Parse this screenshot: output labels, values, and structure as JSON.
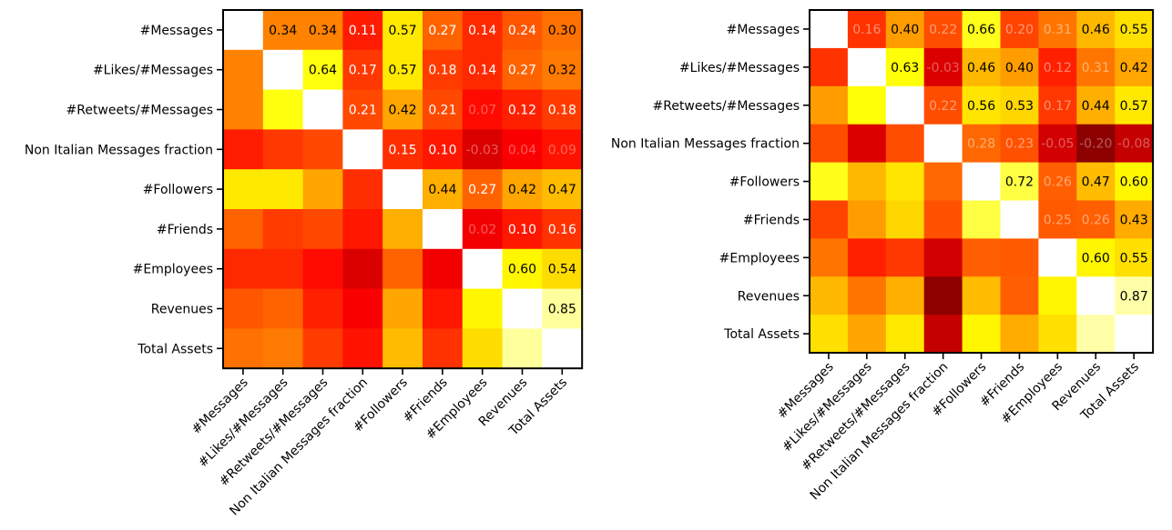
{
  "chart_data": [
    {
      "type": "heatmap",
      "title": "",
      "xlabel": "",
      "ylabel": "",
      "colormap": "hot",
      "value_range": [
        -0.5,
        1.0
      ],
      "diagonal": "blank",
      "lower_triangle_annotated": false,
      "variables": [
        "#Messages",
        "#Likes/#Messages",
        "#Retweets/#Messages",
        "Non Italian Messages fraction",
        "#Followers",
        "#Friends",
        "#Employees",
        "Revenues",
        "Total Assets"
      ],
      "matrix": [
        [
          null,
          0.34,
          0.34,
          0.11,
          0.57,
          0.27,
          0.14,
          0.24,
          0.3
        ],
        [
          0.34,
          null,
          0.64,
          0.17,
          0.57,
          0.18,
          0.14,
          0.27,
          0.32
        ],
        [
          0.34,
          0.64,
          null,
          0.21,
          0.42,
          0.21,
          0.07,
          0.12,
          0.18
        ],
        [
          0.11,
          0.17,
          0.21,
          null,
          0.15,
          0.1,
          -0.03,
          0.04,
          0.09
        ],
        [
          0.57,
          0.57,
          0.42,
          0.15,
          null,
          0.44,
          0.27,
          0.42,
          0.47
        ],
        [
          0.27,
          0.18,
          0.21,
          0.1,
          0.44,
          null,
          0.02,
          0.1,
          0.16
        ],
        [
          0.14,
          0.14,
          0.07,
          -0.03,
          0.27,
          0.02,
          null,
          0.6,
          0.54
        ],
        [
          0.24,
          0.27,
          0.12,
          0.04,
          0.42,
          0.1,
          0.6,
          null,
          0.85
        ],
        [
          0.3,
          0.32,
          0.18,
          0.09,
          0.47,
          0.16,
          0.54,
          0.85,
          null
        ]
      ],
      "labels": [
        [
          null,
          "0.34",
          "0.34",
          "0.11",
          "0.57",
          "0.27",
          "0.14",
          "0.24",
          "0.30"
        ],
        [
          null,
          null,
          "0.64",
          "0.17",
          "0.57",
          "0.18",
          "0.14",
          "0.27",
          "0.32"
        ],
        [
          null,
          null,
          null,
          "0.21",
          "0.42",
          "0.21",
          "0.07",
          "0.12",
          "0.18"
        ],
        [
          null,
          null,
          null,
          null,
          "0.15",
          "0.10",
          "-0.03",
          "0.04",
          "0.09"
        ],
        [
          null,
          null,
          null,
          null,
          null,
          "0.44",
          "0.27",
          "0.42",
          "0.47"
        ],
        [
          null,
          null,
          null,
          null,
          null,
          null,
          "0.02",
          "0.10",
          "0.16"
        ],
        [
          null,
          null,
          null,
          null,
          null,
          null,
          null,
          "0.60",
          "0.54"
        ],
        [
          null,
          null,
          null,
          null,
          null,
          null,
          null,
          null,
          "0.85"
        ],
        [
          null,
          null,
          null,
          null,
          null,
          null,
          null,
          null,
          null
        ]
      ]
    },
    {
      "type": "heatmap",
      "title": "",
      "xlabel": "",
      "ylabel": "",
      "colormap": "hot",
      "value_range": [
        -0.5,
        1.0
      ],
      "diagonal": "blank",
      "lower_triangle_annotated": false,
      "variables": [
        "#Messages",
        "#Likes/#Messages",
        "#Retweets/#Messages",
        "Non Italian Messages fraction",
        "#Followers",
        "#Friends",
        "#Employees",
        "Revenues",
        "Total Assets"
      ],
      "matrix": [
        [
          null,
          0.16,
          0.4,
          0.22,
          0.66,
          0.2,
          0.31,
          0.46,
          0.55
        ],
        [
          0.16,
          null,
          0.63,
          -0.03,
          0.46,
          0.4,
          0.12,
          0.31,
          0.42
        ],
        [
          0.4,
          0.63,
          null,
          0.22,
          0.56,
          0.53,
          0.17,
          0.44,
          0.57
        ],
        [
          0.22,
          -0.03,
          0.22,
          null,
          0.28,
          0.23,
          -0.05,
          -0.2,
          -0.08
        ],
        [
          0.66,
          0.46,
          0.56,
          0.28,
          null,
          0.72,
          0.26,
          0.47,
          0.6
        ],
        [
          0.2,
          0.4,
          0.53,
          0.23,
          0.72,
          null,
          0.25,
          0.26,
          0.43
        ],
        [
          0.31,
          0.12,
          0.17,
          -0.05,
          0.26,
          0.25,
          null,
          0.6,
          0.55
        ],
        [
          0.46,
          0.31,
          0.44,
          -0.2,
          0.47,
          0.26,
          0.6,
          null,
          0.87
        ],
        [
          0.55,
          0.42,
          0.57,
          -0.08,
          0.6,
          0.43,
          0.55,
          0.87,
          null
        ]
      ],
      "labels": [
        [
          null,
          "0.16",
          "0.40",
          "0.22",
          "0.66",
          "0.20",
          "0.31",
          "0.46",
          "0.55"
        ],
        [
          null,
          null,
          "0.63",
          "-0.03",
          "0.46",
          "0.40",
          "0.12",
          "0.31",
          "0.42"
        ],
        [
          null,
          null,
          null,
          "0.22",
          "0.56",
          "0.53",
          "0.17",
          "0.44",
          "0.57"
        ],
        [
          null,
          null,
          null,
          null,
          "0.28",
          "0.23",
          "-0.05",
          "-0.20",
          "-0.08"
        ],
        [
          null,
          null,
          null,
          null,
          null,
          "0.72",
          "0.26",
          "0.47",
          "0.60"
        ],
        [
          null,
          null,
          null,
          null,
          null,
          null,
          "0.25",
          "0.26",
          "0.43"
        ],
        [
          null,
          null,
          null,
          null,
          null,
          null,
          null,
          "0.60",
          "0.55"
        ],
        [
          null,
          null,
          null,
          null,
          null,
          null,
          null,
          null,
          "0.87"
        ],
        [
          null,
          null,
          null,
          null,
          null,
          null,
          null,
          null,
          null
        ]
      ]
    }
  ]
}
